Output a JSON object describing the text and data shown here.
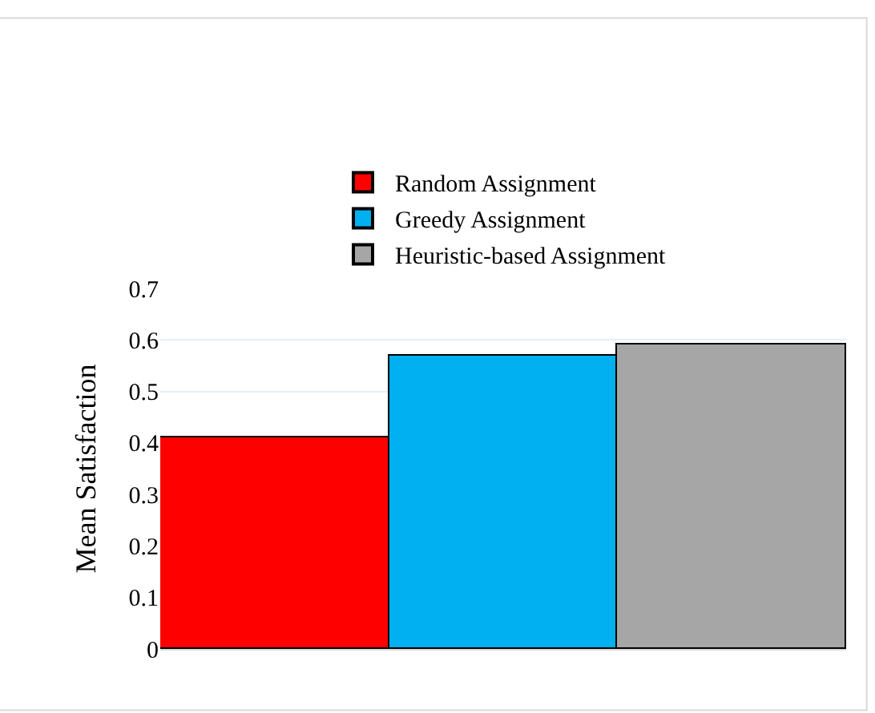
{
  "chart_data": {
    "type": "bar",
    "ylabel": "Mean Satisfaction",
    "categories": [
      null
    ],
    "series": [
      {
        "name": "Random Assignment",
        "color": "#ff0000",
        "values": [
          0.41
        ]
      },
      {
        "name": "Greedy Assignment",
        "color": "#00b0f0",
        "values": [
          0.57
        ]
      },
      {
        "name": "Heuristic-based Assignment",
        "color": "#a6a6a6",
        "values": [
          0.59
        ]
      }
    ],
    "ylim": [
      0,
      0.7
    ],
    "yticks": [
      0,
      0.1,
      0.2,
      0.3,
      0.4,
      0.5,
      0.6,
      0.7
    ],
    "grid": "y",
    "legend": "top"
  }
}
